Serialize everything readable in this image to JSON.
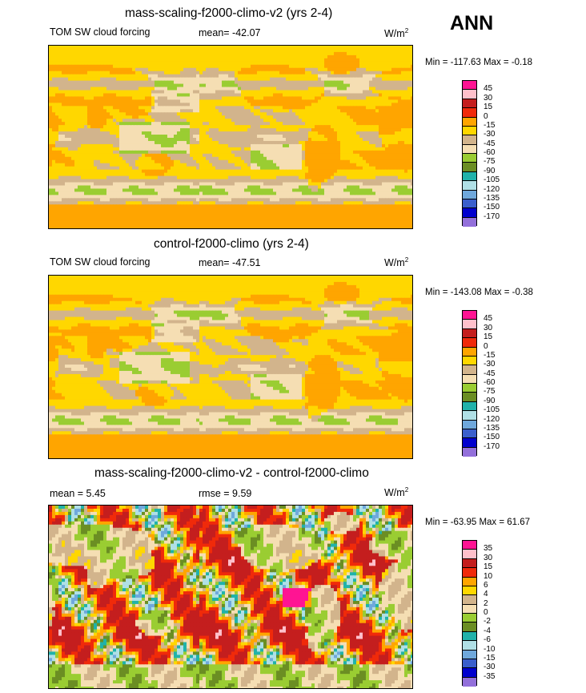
{
  "season": "ANN",
  "panels": [
    {
      "title": "mass-scaling-f2000-climo-v2 (yrs 2-4)",
      "left_label": "TOM SW cloud forcing",
      "mid_label": "mean= -42.07",
      "units": "W/m",
      "units_sup": "2",
      "minmax": "Min = -117.63 Max =  -0.18"
    },
    {
      "title": "control-f2000-climo (yrs 2-4)",
      "left_label": "TOM SW cloud forcing",
      "mid_label": "mean= -47.51",
      "units": "W/m",
      "units_sup": "2",
      "minmax": "Min = -143.08 Max =  -0.38"
    },
    {
      "title": "mass-scaling-f2000-climo-v2 - control-f2000-climo",
      "left_label": "mean =   5.45",
      "mid_label": "rmse =   9.59",
      "units": "W/m",
      "units_sup": "2",
      "minmax": "Min = -63.95 Max =  61.67"
    }
  ],
  "chart_data": [
    {
      "type": "heatmap",
      "title": "mass-scaling-f2000-climo-v2 (yrs 2-4)",
      "variable": "TOM SW cloud forcing",
      "units": "W/m2",
      "mean": -42.07,
      "min": -117.63,
      "max": -0.18,
      "levels": [
        45,
        30,
        15,
        0,
        -15,
        -30,
        -45,
        -60,
        -75,
        -90,
        -105,
        -120,
        -135,
        -150,
        -170
      ],
      "colors": [
        "#ff1493",
        "#ffc0cb",
        "#c41e1e",
        "#f02a0a",
        "#ffa500",
        "#ffd700",
        "#d2b48c",
        "#f5deb3",
        "#9acd32",
        "#6b8e23",
        "#20b2aa",
        "#b0e0e6",
        "#6fa8dc",
        "#3a5fcd",
        "#0000cd",
        "#9370db"
      ]
    },
    {
      "type": "heatmap",
      "title": "control-f2000-climo (yrs 2-4)",
      "variable": "TOM SW cloud forcing",
      "units": "W/m2",
      "mean": -47.51,
      "min": -143.08,
      "max": -0.38,
      "levels": [
        45,
        30,
        15,
        0,
        -15,
        -30,
        -45,
        -60,
        -75,
        -90,
        -105,
        -120,
        -135,
        -150,
        -170
      ],
      "colors": [
        "#ff1493",
        "#ffc0cb",
        "#c41e1e",
        "#f02a0a",
        "#ffa500",
        "#ffd700",
        "#d2b48c",
        "#f5deb3",
        "#9acd32",
        "#6b8e23",
        "#20b2aa",
        "#b0e0e6",
        "#6fa8dc",
        "#3a5fcd",
        "#0000cd",
        "#9370db"
      ]
    },
    {
      "type": "heatmap",
      "title": "mass-scaling-f2000-climo-v2 - control-f2000-climo",
      "units": "W/m2",
      "mean": 5.45,
      "rmse": 9.59,
      "min": -63.95,
      "max": 61.67,
      "levels": [
        35,
        30,
        15,
        10,
        6,
        4,
        2,
        0,
        -2,
        -4,
        -6,
        -10,
        -15,
        -30,
        -35
      ],
      "colors": [
        "#ff1493",
        "#ffc0cb",
        "#c41e1e",
        "#f02a0a",
        "#ffa500",
        "#ffd700",
        "#d2b48c",
        "#f5deb3",
        "#9acd32",
        "#6b8e23",
        "#20b2aa",
        "#b0e0e6",
        "#6fa8dc",
        "#3a5fcd",
        "#0000cd",
        "#9370db"
      ]
    }
  ]
}
